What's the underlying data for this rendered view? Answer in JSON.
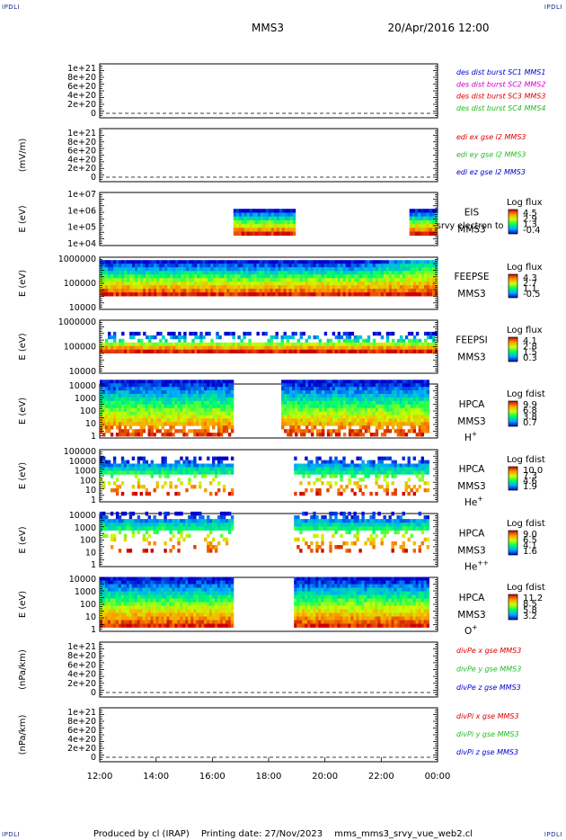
{
  "header": {
    "mission": "MMS3",
    "datetime": "20/Apr/2016 12:00",
    "corner_label": "IPDLI"
  },
  "footer": {
    "producer": "Produced by cl (IRAP)",
    "printing": "Printing date: 27/Nov/2023",
    "script": "mms_mms3_srvy_vue_web2.cl"
  },
  "time_axis": {
    "tick_labels": [
      "12:00",
      "14:00",
      "16:00",
      "18:00",
      "20:00",
      "22:00",
      "00:00"
    ]
  },
  "colors": {
    "red": "#dd0000",
    "magenta": "#cc00cc",
    "green": "#22bb22",
    "blue": "#0000cc"
  },
  "chart_data": [
    {
      "type": "line",
      "id": "des",
      "ylabel": "",
      "ytick_labels": [
        "1e+21",
        "8e+20",
        "6e+20",
        "4e+20",
        "2e+20",
        "0"
      ],
      "series": [
        {
          "name": "des dist burst SC1 MMS1",
          "color": "#0000cc"
        },
        {
          "name": "des dist burst SC2 MMS2",
          "color": "#cc00cc"
        },
        {
          "name": "des dist burst SC3 MMS3",
          "color": "#dd0000"
        },
        {
          "name": "des dist burst SC4 MMS4",
          "color": "#22bb22"
        }
      ]
    },
    {
      "type": "line",
      "id": "edi",
      "ylabel": "(mV/m)",
      "ytick_labels": [
        "1e+21",
        "8e+20",
        "6e+20",
        "4e+20",
        "2e+20",
        "0"
      ],
      "series": [
        {
          "name": "edi ex gse l2 MMS3",
          "color": "#dd0000"
        },
        {
          "name": "edi ey gse l2 MMS3",
          "color": "#22bb22"
        },
        {
          "name": "edi ez gse l2 MMS3",
          "color": "#0000cc"
        }
      ]
    },
    {
      "type": "heatmap",
      "id": "eis",
      "ylabel": "E (eV)",
      "ytick_labels": [
        "1e+07",
        "1e+06",
        "1e+05",
        "1e+04"
      ],
      "instrument": [
        "EIS",
        "MMS3"
      ],
      "overlay_text": "srvy electron to",
      "colorbar": {
        "title": "Log flux",
        "ticks": [
          "4.5",
          "2.9",
          "1.3",
          "-0.4"
        ]
      },
      "data_intervals": [
        [
          16.75,
          18.95
        ],
        [
          23.0,
          24.0
        ]
      ],
      "e_range": [
        32000.0,
        1300000.0
      ]
    },
    {
      "type": "heatmap",
      "id": "feepse",
      "ylabel": "E (eV)",
      "ytick_labels": [
        "1000000",
        "100000",
        "10000"
      ],
      "instrument": [
        "FEEPSE",
        "MMS3"
      ],
      "colorbar": {
        "title": "Log flux",
        "ticks": [
          "4.3",
          "2.7",
          "1.1",
          "-0.5"
        ]
      },
      "data_intervals": [
        [
          12.0,
          24.0
        ]
      ],
      "e_range": [
        30000.0,
        900000.0
      ]
    },
    {
      "type": "heatmap",
      "id": "feepsi",
      "ylabel": "E (eV)",
      "ytick_labels": [
        "1000000",
        "100000",
        "10000"
      ],
      "instrument": [
        "FEEPSI",
        "MMS3"
      ],
      "colorbar": {
        "title": "Log flux",
        "ticks": [
          "4.1",
          "2.8",
          "1.5",
          "0.3"
        ]
      },
      "data_intervals": [
        [
          12.0,
          24.0
        ]
      ],
      "e_range": [
        55000.0,
        400000.0
      ]
    },
    {
      "type": "heatmap",
      "id": "hpca-h",
      "ylabel": "E (eV)",
      "ytick_labels": [
        "10000",
        "1000",
        "100",
        "10",
        "1"
      ],
      "instrument": [
        "HPCA",
        "MMS3"
      ],
      "species": "H",
      "species_charge": "+",
      "colorbar": {
        "title": "Log fdist",
        "ticks": [
          "9.9",
          "6.8",
          "3.8",
          "0.7"
        ]
      },
      "data_intervals": [
        [
          12.0,
          16.75
        ],
        [
          18.45,
          23.7
        ]
      ],
      "e_range": [
        1,
        30000
      ]
    },
    {
      "type": "heatmap",
      "id": "hpca-he",
      "ylabel": "E (eV)",
      "ytick_labels": [
        "100000",
        "10000",
        "1000",
        "100",
        "10",
        "1"
      ],
      "instrument": [
        "HPCA",
        "MMS3"
      ],
      "species": "He",
      "species_charge": "+",
      "colorbar": {
        "title": "Log fdist",
        "ticks": [
          "10.0",
          "7.3",
          "4.6",
          "1.9"
        ]
      },
      "data_intervals": [
        [
          12.0,
          16.75
        ],
        [
          18.9,
          23.7
        ]
      ],
      "e_range": [
        3,
        30000
      ]
    },
    {
      "type": "heatmap",
      "id": "hpca-hepp",
      "ylabel": "E (eV)",
      "ytick_labels": [
        "10000",
        "1000",
        "100",
        "10",
        "1"
      ],
      "instrument": [
        "HPCA",
        "MMS3"
      ],
      "species": "He",
      "species_charge": "++",
      "colorbar": {
        "title": "Log fdist",
        "ticks": [
          "9.0",
          "6.5",
          "4.1",
          "1.6"
        ]
      },
      "data_intervals": [
        [
          12.0,
          16.75
        ],
        [
          18.9,
          23.7
        ]
      ],
      "e_range": [
        10,
        20000
      ]
    },
    {
      "type": "heatmap",
      "id": "hpca-o",
      "ylabel": "E (eV)",
      "ytick_labels": [
        "10000",
        "1000",
        "100",
        "10",
        "1"
      ],
      "instrument": [
        "HPCA",
        "MMS3"
      ],
      "species": "O",
      "species_charge": "+",
      "colorbar": {
        "title": "Log fdist",
        "ticks": [
          "11.2",
          "8.5",
          "5.8",
          "3.2"
        ]
      },
      "data_intervals": [
        [
          12.0,
          16.75
        ],
        [
          18.9,
          23.7
        ]
      ],
      "e_range": [
        1.5,
        15000
      ]
    },
    {
      "type": "line",
      "id": "divpe",
      "ylabel": "(nPa/km)",
      "ytick_labels": [
        "1e+21",
        "8e+20",
        "6e+20",
        "4e+20",
        "2e+20",
        "0"
      ],
      "series": [
        {
          "name": "divPe x gse MMS3",
          "color": "#dd0000"
        },
        {
          "name": "divPe y gse MMS3",
          "color": "#22bb22"
        },
        {
          "name": "divPe z gse MMS3",
          "color": "#0000cc"
        }
      ]
    },
    {
      "type": "line",
      "id": "divpi",
      "ylabel": "(nPa/km)",
      "ytick_labels": [
        "1e+21",
        "8e+20",
        "6e+20",
        "4e+20",
        "2e+20",
        "0"
      ],
      "series": [
        {
          "name": "divPi x gse MMS3",
          "color": "#dd0000"
        },
        {
          "name": "divPi y gse MMS3",
          "color": "#22bb22"
        },
        {
          "name": "divPi z gse MMS3",
          "color": "#0000cc"
        }
      ]
    }
  ]
}
